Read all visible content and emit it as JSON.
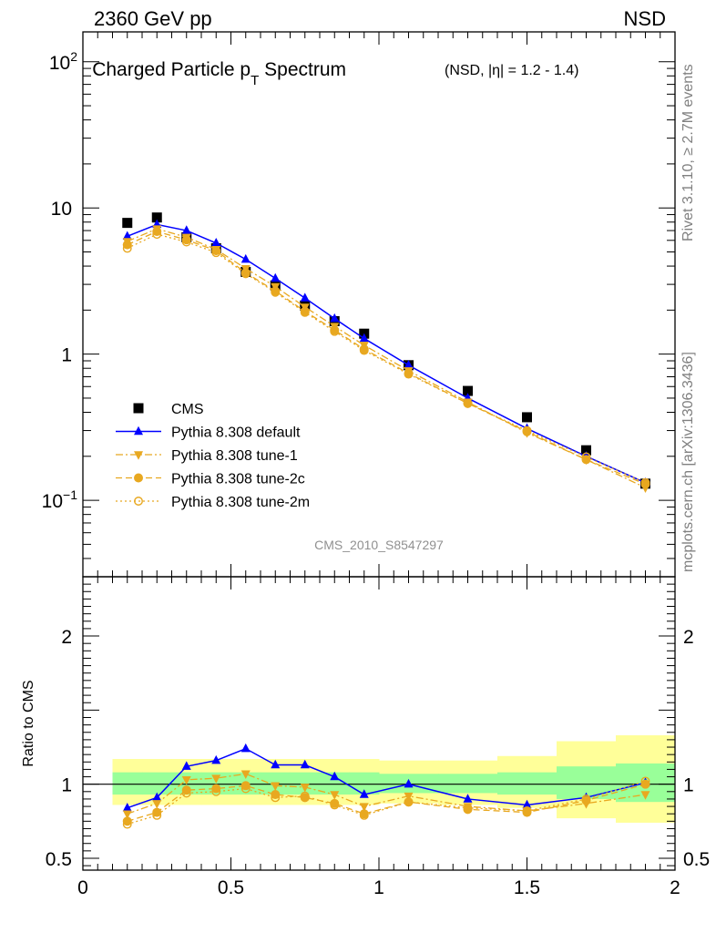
{
  "header": {
    "left": "2360 GeV pp",
    "right": "NSD"
  },
  "side_labels": {
    "rivet": "Rivet 3.1.10, ≥ 2.7M events",
    "mcplots": "mcplots.cern.ch [arXiv:1306.3436]"
  },
  "chart_data": [
    {
      "type": "line",
      "panel": "main",
      "title_main": "Charged Particle p",
      "title_sub": "T",
      "title_word": " Spectrum",
      "title_small": "(NSD, |η| = 1.2 - 1.4)",
      "watermark": "CMS_2010_S8547297",
      "yscale": "log",
      "xlim": [
        0,
        2
      ],
      "ylim": [
        0.03,
        160
      ],
      "y_ticks": [
        {
          "value": 100,
          "base": "10",
          "exp": "2"
        },
        {
          "value": 10,
          "base": "10",
          "exp": ""
        },
        {
          "value": 1,
          "base": "1",
          "exp": ""
        },
        {
          "value": 0.1,
          "base": "10",
          "exp": "−1"
        }
      ],
      "legend_position": "bottom-left",
      "x": [
        0.15,
        0.25,
        0.35,
        0.45,
        0.55,
        0.65,
        0.75,
        0.85,
        0.95,
        1.1,
        1.3,
        1.5,
        1.7,
        1.9
      ],
      "series": [
        {
          "name": "CMS",
          "color": "#000000",
          "marker": "square",
          "line": "none",
          "values": [
            7.9,
            8.6,
            6.3,
            5.3,
            3.65,
            2.95,
            2.15,
            1.68,
            1.38,
            0.84,
            0.56,
            0.37,
            0.22,
            0.13
          ]
        },
        {
          "name": "Pythia 8.308 default",
          "color": "#0000ff",
          "marker": "triangle-up",
          "line": "solid",
          "values": [
            6.4,
            7.7,
            7.0,
            5.75,
            4.45,
            3.3,
            2.42,
            1.75,
            1.28,
            0.84,
            0.5,
            0.31,
            0.2,
            0.132
          ]
        },
        {
          "name": "Pythia 8.308 tune-1",
          "color": "#e8a820",
          "marker": "triangle-down",
          "line": "dashdot",
          "values": [
            5.9,
            7.2,
            6.3,
            5.2,
            3.85,
            2.9,
            2.1,
            1.55,
            1.15,
            0.77,
            0.47,
            0.29,
            0.19,
            0.122
          ]
        },
        {
          "name": "Pythia 8.308 tune-2c",
          "color": "#e8a820",
          "marker": "circle",
          "line": "dashed",
          "values": [
            5.6,
            6.9,
            6.05,
            5.1,
            3.6,
            2.7,
            1.96,
            1.46,
            1.08,
            0.74,
            0.46,
            0.295,
            0.19,
            0.129
          ]
        },
        {
          "name": "Pythia 8.308 tune-2m",
          "color": "#e8a820",
          "marker": "circle-open",
          "line": "dotted",
          "values": [
            5.3,
            6.6,
            5.85,
            4.95,
            3.55,
            2.65,
            1.93,
            1.43,
            1.06,
            0.73,
            0.46,
            0.3,
            0.198,
            0.132
          ]
        }
      ]
    },
    {
      "type": "line",
      "panel": "ratio",
      "ylabel": "Ratio to CMS",
      "xlim": [
        0,
        2
      ],
      "ylim": [
        0.42,
        2.4
      ],
      "x_ticks": [
        "0",
        "0.5",
        "1",
        "1.5",
        "2"
      ],
      "y_ticks": [
        "0.5",
        "1",
        "2"
      ],
      "reference_line": 1,
      "bands": {
        "edges": [
          0.1,
          0.2,
          0.3,
          0.4,
          0.5,
          0.6,
          0.7,
          0.8,
          0.9,
          1.0,
          1.2,
          1.4,
          1.6,
          1.8,
          2.0
        ],
        "inner_low": [
          0.93,
          0.93,
          0.93,
          0.93,
          0.93,
          0.93,
          0.93,
          0.93,
          0.93,
          0.94,
          0.94,
          0.93,
          0.9,
          0.88
        ],
        "inner_high": [
          1.08,
          1.08,
          1.08,
          1.08,
          1.08,
          1.08,
          1.08,
          1.08,
          1.08,
          1.07,
          1.07,
          1.08,
          1.12,
          1.14
        ],
        "outer_low": [
          0.86,
          0.86,
          0.86,
          0.86,
          0.86,
          0.86,
          0.86,
          0.86,
          0.86,
          0.87,
          0.86,
          0.84,
          0.77,
          0.74
        ],
        "outer_high": [
          1.17,
          1.17,
          1.17,
          1.17,
          1.17,
          1.17,
          1.17,
          1.17,
          1.17,
          1.16,
          1.16,
          1.19,
          1.29,
          1.33
        ],
        "inner_color": "#99ff99",
        "outer_color": "#ffff99"
      },
      "x": [
        0.15,
        0.25,
        0.35,
        0.45,
        0.55,
        0.65,
        0.75,
        0.85,
        0.95,
        1.1,
        1.3,
        1.5,
        1.7,
        1.9
      ],
      "series": [
        {
          "name": "Pythia 8.308 default",
          "color": "#0000ff",
          "marker": "triangle-up",
          "line": "solid",
          "values": [
            0.84,
            0.91,
            1.12,
            1.16,
            1.24,
            1.13,
            1.13,
            1.05,
            0.93,
            1.0,
            0.9,
            0.86,
            0.91,
            1.01
          ]
        },
        {
          "name": "Pythia 8.308 tune-1",
          "color": "#e8a820",
          "marker": "triangle-down",
          "line": "dashdot",
          "values": [
            0.8,
            0.87,
            1.03,
            1.04,
            1.07,
            0.99,
            0.98,
            0.93,
            0.85,
            0.92,
            0.85,
            0.82,
            0.87,
            0.93
          ]
        },
        {
          "name": "Pythia 8.308 tune-2c",
          "color": "#e8a820",
          "marker": "circle",
          "line": "dashed",
          "values": [
            0.75,
            0.81,
            0.96,
            0.97,
            0.99,
            0.93,
            0.91,
            0.87,
            0.8,
            0.88,
            0.83,
            0.81,
            0.89,
            1.0
          ]
        },
        {
          "name": "Pythia 8.308 tune-2m",
          "color": "#e8a820",
          "marker": "circle-open",
          "line": "dotted",
          "values": [
            0.73,
            0.79,
            0.94,
            0.95,
            0.97,
            0.91,
            0.92,
            0.86,
            0.79,
            0.88,
            0.84,
            0.82,
            0.9,
            1.02
          ]
        }
      ]
    }
  ]
}
